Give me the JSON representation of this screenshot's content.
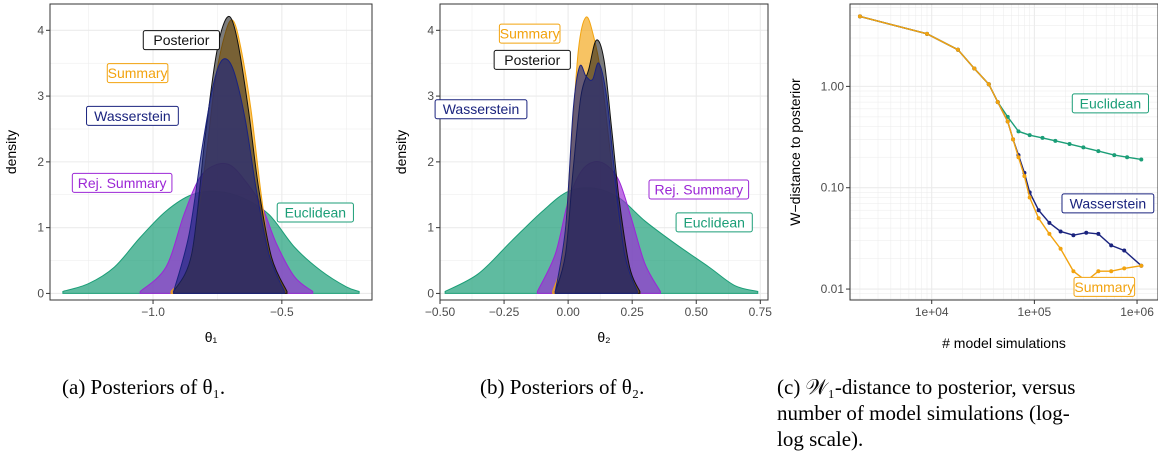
{
  "colors": {
    "posterior": "#111111",
    "summary": "#f2a30f",
    "wasserstein": "#1a237e",
    "rej_summary": "#9c27d6",
    "euclidean": "#1b9e77",
    "grid": "#ebebeb"
  },
  "captions": {
    "a": "(a) Posteriors of θ₁.",
    "b": "(b) Posteriors of θ₂.",
    "c_line1": "(c) 𝒲₁-distance to posterior, versus",
    "c_line2": "number of model simulations (log-",
    "c_line3": "log scale)."
  },
  "chart_data": [
    {
      "type": "area",
      "xlabel": "θ₁",
      "ylabel": "density",
      "xlim": [
        -1.4,
        -0.15
      ],
      "ylim": [
        -0.1,
        4.4
      ],
      "x_ticks": [
        {
          "v": -1.0,
          "t": "−1.0"
        },
        {
          "v": -0.5,
          "t": "−0.5"
        }
      ],
      "y_ticks": [
        {
          "v": 0,
          "t": "0"
        },
        {
          "v": 1,
          "t": "1"
        },
        {
          "v": 2,
          "t": "2"
        },
        {
          "v": 3,
          "t": "3"
        },
        {
          "v": 4,
          "t": "4"
        }
      ],
      "series": [
        {
          "name": "Euclidean",
          "key": "euclidean",
          "x": [
            -1.35,
            -1.25,
            -1.15,
            -1.05,
            -0.95,
            -0.85,
            -0.75,
            -0.65,
            -0.55,
            -0.45,
            -0.35,
            -0.25,
            -0.2
          ],
          "y": [
            0.03,
            0.15,
            0.4,
            0.85,
            1.25,
            1.5,
            1.55,
            1.45,
            1.2,
            0.7,
            0.35,
            0.1,
            0.03
          ]
        },
        {
          "name": "Rej. Summary",
          "key": "rej_summary",
          "x": [
            -1.05,
            -0.95,
            -0.88,
            -0.82,
            -0.76,
            -0.7,
            -0.64,
            -0.58,
            -0.52,
            -0.45,
            -0.38
          ],
          "y": [
            0.03,
            0.4,
            1.2,
            1.75,
            1.95,
            1.95,
            1.7,
            1.35,
            0.75,
            0.25,
            0.03
          ]
        },
        {
          "name": "Summary",
          "key": "summary",
          "x": [
            -0.93,
            -0.86,
            -0.8,
            -0.76,
            -0.72,
            -0.69,
            -0.66,
            -0.62,
            -0.58,
            -0.54,
            -0.48
          ],
          "y": [
            0.03,
            0.45,
            1.9,
            3.2,
            3.95,
            4.15,
            3.75,
            2.8,
            1.5,
            0.5,
            0.03
          ]
        },
        {
          "name": "Posterior",
          "key": "posterior",
          "x": [
            -0.92,
            -0.85,
            -0.8,
            -0.76,
            -0.73,
            -0.7,
            -0.67,
            -0.63,
            -0.59,
            -0.54,
            -0.48
          ],
          "y": [
            0.03,
            0.6,
            2.3,
            3.5,
            4.05,
            4.2,
            3.8,
            2.8,
            1.6,
            0.55,
            0.03
          ]
        },
        {
          "name": "Wasserstein",
          "key": "wasserstein",
          "x": [
            -0.92,
            -0.86,
            -0.81,
            -0.77,
            -0.74,
            -0.71,
            -0.68,
            -0.64,
            -0.6,
            -0.55,
            -0.49
          ],
          "y": [
            0.03,
            0.9,
            2.2,
            3.1,
            3.5,
            3.55,
            3.3,
            2.6,
            1.6,
            0.6,
            0.03
          ]
        }
      ],
      "labels": [
        {
          "text": "Posterior",
          "key": "posterior",
          "x": -0.89,
          "y": 3.85
        },
        {
          "text": "Summary",
          "key": "summary",
          "x": -1.06,
          "y": 3.35
        },
        {
          "text": "Wasserstein",
          "key": "wasserstein",
          "x": -1.08,
          "y": 2.7
        },
        {
          "text": "Rej. Summary",
          "key": "rej_summary",
          "x": -1.12,
          "y": 1.68
        },
        {
          "text": "Euclidean",
          "key": "euclidean",
          "x": -0.37,
          "y": 1.23
        }
      ]
    },
    {
      "type": "area",
      "xlabel": "θ₂",
      "ylabel": "density",
      "xlim": [
        -0.5,
        0.78
      ],
      "ylim": [
        -0.1,
        4.4
      ],
      "x_ticks": [
        {
          "v": -0.5,
          "t": "−0.50"
        },
        {
          "v": -0.25,
          "t": "−0.25"
        },
        {
          "v": 0.0,
          "t": "0.00"
        },
        {
          "v": 0.25,
          "t": "0.25"
        },
        {
          "v": 0.5,
          "t": "0.50"
        },
        {
          "v": 0.75,
          "t": "0.75"
        }
      ],
      "y_ticks": [
        {
          "v": 0,
          "t": "0"
        },
        {
          "v": 1,
          "t": "1"
        },
        {
          "v": 2,
          "t": "2"
        },
        {
          "v": 3,
          "t": "3"
        },
        {
          "v": 4,
          "t": "4"
        }
      ],
      "series": [
        {
          "name": "Euclidean",
          "key": "euclidean",
          "x": [
            -0.48,
            -0.35,
            -0.22,
            -0.1,
            0.0,
            0.1,
            0.2,
            0.3,
            0.42,
            0.55,
            0.65,
            0.74
          ],
          "y": [
            0.03,
            0.3,
            0.8,
            1.25,
            1.55,
            1.6,
            1.45,
            1.1,
            0.75,
            0.4,
            0.12,
            0.03
          ]
        },
        {
          "name": "Rej. Summary",
          "key": "rej_summary",
          "x": [
            -0.12,
            -0.05,
            0.0,
            0.05,
            0.1,
            0.15,
            0.2,
            0.25,
            0.3,
            0.36
          ],
          "y": [
            0.03,
            0.6,
            1.4,
            1.85,
            2.0,
            1.95,
            1.7,
            1.1,
            0.45,
            0.03
          ]
        },
        {
          "name": "Summary",
          "key": "summary",
          "x": [
            -0.06,
            -0.02,
            0.01,
            0.04,
            0.07,
            0.1,
            0.13,
            0.16,
            0.19,
            0.23,
            0.28
          ],
          "y": [
            0.03,
            0.6,
            2.1,
            3.7,
            4.2,
            3.9,
            3.3,
            2.3,
            1.3,
            0.4,
            0.03
          ]
        },
        {
          "name": "Posterior",
          "key": "posterior",
          "x": [
            -0.05,
            -0.01,
            0.02,
            0.05,
            0.08,
            0.11,
            0.14,
            0.17,
            0.2,
            0.24,
            0.28
          ],
          "y": [
            0.03,
            0.6,
            1.9,
            3.0,
            3.4,
            3.85,
            3.55,
            2.5,
            1.4,
            0.4,
            0.03
          ]
        },
        {
          "name": "Wasserstein",
          "key": "wasserstein",
          "x": [
            -0.05,
            -0.01,
            0.02,
            0.045,
            0.07,
            0.095,
            0.12,
            0.15,
            0.18,
            0.22,
            0.27
          ],
          "y": [
            0.03,
            1.0,
            2.8,
            3.45,
            3.3,
            3.25,
            3.5,
            3.0,
            1.9,
            0.6,
            0.03
          ]
        }
      ],
      "labels": [
        {
          "text": "Summary",
          "key": "summary",
          "x": -0.15,
          "y": 3.95
        },
        {
          "text": "Posterior",
          "key": "posterior",
          "x": -0.14,
          "y": 3.55
        },
        {
          "text": "Wasserstein",
          "key": "wasserstein",
          "x": -0.34,
          "y": 2.8
        },
        {
          "text": "Rej. Summary",
          "key": "rej_summary",
          "x": 0.51,
          "y": 1.58
        },
        {
          "text": "Euclidean",
          "key": "euclidean",
          "x": 0.57,
          "y": 1.08
        }
      ]
    },
    {
      "type": "line",
      "xlabel": "# model simulations",
      "ylabel": "W−distance to posterior",
      "x_scale": "log",
      "y_scale": "log",
      "xlim": [
        1600,
        1600000
      ],
      "ylim": [
        0.0078,
        6.5
      ],
      "x_ticks": [
        {
          "v": 10000,
          "t": "1e+04"
        },
        {
          "v": 100000,
          "t": "1e+05"
        },
        {
          "v": 1000000,
          "t": "1e+06"
        }
      ],
      "y_ticks": [
        {
          "v": 0.01,
          "t": "0.01"
        },
        {
          "v": 0.1,
          "t": "0.10"
        },
        {
          "v": 1.0,
          "t": "1.00"
        }
      ],
      "series": [
        {
          "name": "Euclidean",
          "key": "euclidean",
          "x": [
            2000,
            9000,
            18000,
            26000,
            36000,
            44000,
            55000,
            70000,
            90000,
            120000,
            160000,
            220000,
            300000,
            420000,
            600000,
            800000,
            1100000
          ],
          "y": [
            4.9,
            3.3,
            2.3,
            1.5,
            1.05,
            0.7,
            0.5,
            0.36,
            0.33,
            0.31,
            0.29,
            0.27,
            0.25,
            0.23,
            0.21,
            0.2,
            0.19
          ]
        },
        {
          "name": "Wasserstein",
          "key": "wasserstein",
          "x": [
            2000,
            9000,
            18000,
            26000,
            36000,
            44000,
            55000,
            62000,
            70000,
            80000,
            90000,
            110000,
            140000,
            180000,
            240000,
            320000,
            420000,
            560000,
            750000,
            1100000
          ],
          "y": [
            4.9,
            3.3,
            2.3,
            1.5,
            1.05,
            0.7,
            0.45,
            0.3,
            0.21,
            0.14,
            0.09,
            0.06,
            0.045,
            0.037,
            0.034,
            0.036,
            0.035,
            0.027,
            0.024,
            0.017
          ]
        },
        {
          "name": "Summary",
          "key": "summary",
          "x": [
            2000,
            9000,
            18000,
            26000,
            36000,
            44000,
            55000,
            62000,
            70000,
            80000,
            90000,
            110000,
            140000,
            180000,
            240000,
            320000,
            420000,
            560000,
            750000,
            1100000
          ],
          "y": [
            4.9,
            3.3,
            2.3,
            1.5,
            1.05,
            0.7,
            0.45,
            0.3,
            0.2,
            0.13,
            0.08,
            0.05,
            0.035,
            0.025,
            0.015,
            0.012,
            0.015,
            0.015,
            0.016,
            0.017
          ]
        }
      ],
      "labels": [
        {
          "text": "Euclidean",
          "key": "euclidean",
          "x": 550000,
          "y": 0.68
        },
        {
          "text": "Wasserstein",
          "key": "wasserstein",
          "x": 520000,
          "y": 0.07
        },
        {
          "text": "Summary",
          "key": "summary",
          "x": 480000,
          "y": 0.0105
        }
      ]
    }
  ]
}
